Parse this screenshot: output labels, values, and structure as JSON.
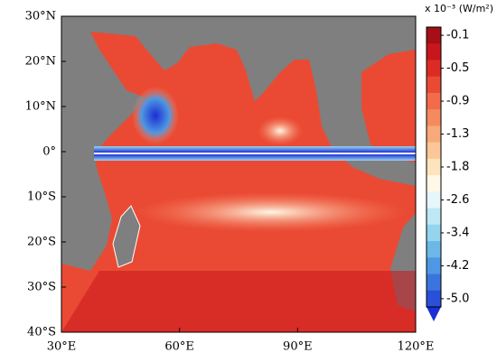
{
  "map": {
    "xticks": [
      {
        "value": 30,
        "label": "30°E"
      },
      {
        "value": 60,
        "label": "60°E"
      },
      {
        "value": 90,
        "label": "90°E"
      },
      {
        "value": 120,
        "label": "120°E"
      }
    ],
    "yticks": [
      {
        "value": -40,
        "label": "40°S"
      },
      {
        "value": -30,
        "label": "30°S"
      },
      {
        "value": -20,
        "label": "20°S"
      },
      {
        "value": -10,
        "label": "10°S"
      },
      {
        "value": 0,
        "label": "0°"
      },
      {
        "value": 10,
        "label": "10°N"
      },
      {
        "value": 20,
        "label": "20°N"
      },
      {
        "value": 30,
        "label": "30°N"
      }
    ],
    "xlim": [
      30,
      120
    ],
    "ylim": [
      -40,
      30
    ],
    "colorbar": {
      "unit": "x 10⁻³ (W/m²)",
      "ticks": [
        -0.1,
        -0.5,
        -0.9,
        -1.3,
        -1.8,
        -2.6,
        -3.4,
        -4.2,
        {
          "value": -5,
          "label": "-5.0"
        }
      ],
      "colors": [
        "#a50f15",
        "#c8161d",
        "#dc2b25",
        "#ea4a34",
        "#f26b4a",
        "#f58a5f",
        "#f8a97a",
        "#fbc798",
        "#fde4bd",
        "#fff8e6",
        "#e6f6fb",
        "#bfe8f5",
        "#94d4ee",
        "#6bb8e8",
        "#4f97e2",
        "#3a74dc",
        "#2a4fd8",
        "#1b2fd3"
      ]
    }
  }
}
